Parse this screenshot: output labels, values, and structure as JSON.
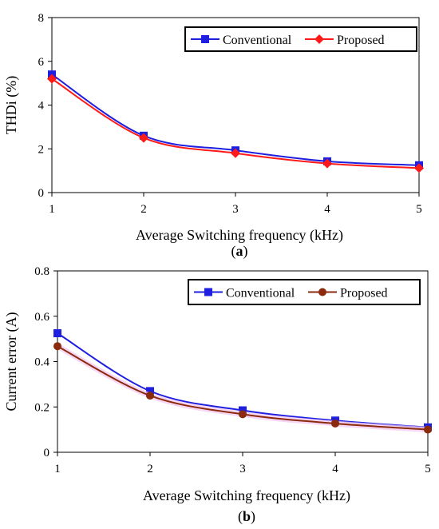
{
  "chart_data": [
    {
      "type": "line",
      "panel_label": "a",
      "xlabel": "Average Switching frequency (kHz)",
      "ylabel": "THDi (%)",
      "xlim": [
        1,
        5
      ],
      "ylim": [
        0,
        8
      ],
      "xticks": [
        "1",
        "2",
        "3",
        "4",
        "5"
      ],
      "yticks": [
        "0",
        "2",
        "4",
        "6",
        "8"
      ],
      "grid": false,
      "legend_position": "top-right",
      "x": [
        1,
        2,
        3,
        4,
        5
      ],
      "series": [
        {
          "name": "Conventional",
          "color": "#1f1fe0",
          "marker": "square",
          "values": [
            5.4,
            2.6,
            1.93,
            1.43,
            1.25
          ]
        },
        {
          "name": "Proposed",
          "color": "#ff1a1a",
          "marker": "diamond",
          "values": [
            5.2,
            2.5,
            1.8,
            1.33,
            1.12
          ]
        }
      ]
    },
    {
      "type": "line",
      "panel_label": "b",
      "xlabel": "Average Switching frequency (kHz)",
      "ylabel": "Current error (A)",
      "xlim": [
        1,
        5
      ],
      "ylim": [
        0,
        0.8
      ],
      "xticks": [
        "1",
        "2",
        "3",
        "4",
        "5"
      ],
      "yticks": [
        "0",
        "0.2",
        "0.4",
        "0.6",
        "0.8"
      ],
      "grid": false,
      "legend_position": "top-right",
      "x": [
        1,
        2,
        3,
        4,
        5
      ],
      "series": [
        {
          "name": "Conventional",
          "color": "#1f1fe0",
          "marker": "square",
          "values": [
            0.525,
            0.27,
            0.185,
            0.14,
            0.11
          ]
        },
        {
          "name": "Proposed",
          "color": "#8b2a0c",
          "marker": "circle",
          "values": [
            0.468,
            0.25,
            0.168,
            0.127,
            0.1
          ]
        }
      ]
    }
  ]
}
